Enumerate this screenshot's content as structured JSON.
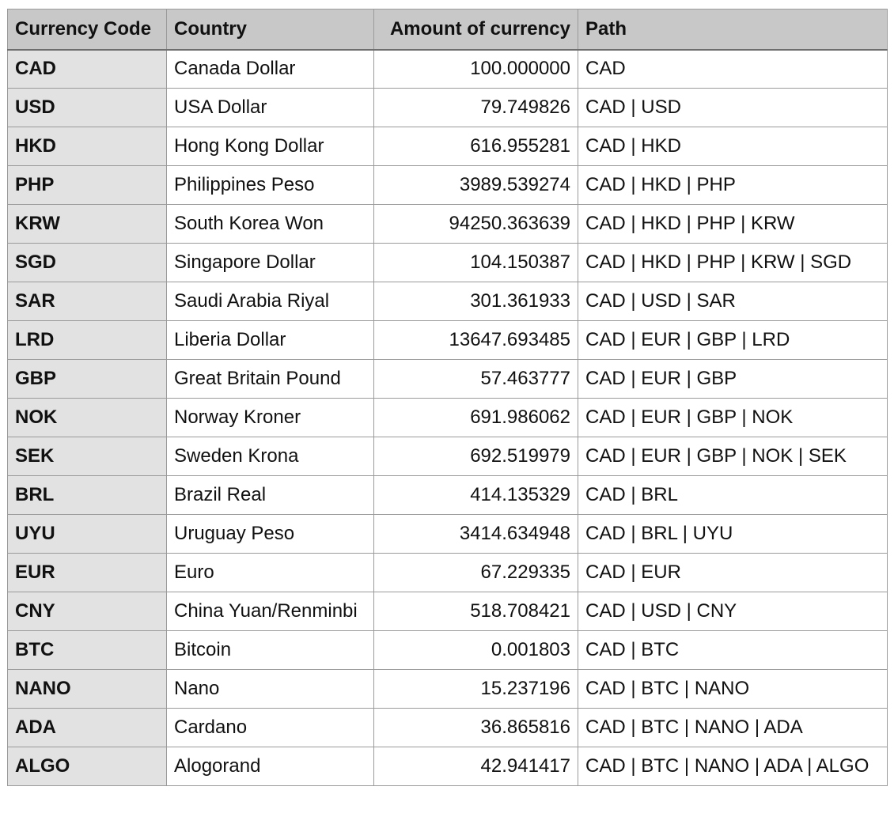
{
  "table": {
    "headers": {
      "code": "Currency Code",
      "country": "Country",
      "amount": "Amount of currency",
      "path": "Path"
    },
    "rows": [
      {
        "code": "CAD",
        "country": "Canada Dollar",
        "amount": "100.000000",
        "path": "CAD"
      },
      {
        "code": "USD",
        "country": "USA Dollar",
        "amount": "79.749826",
        "path": "CAD | USD"
      },
      {
        "code": "HKD",
        "country": "Hong Kong Dollar",
        "amount": "616.955281",
        "path": "CAD | HKD"
      },
      {
        "code": "PHP",
        "country": "Philippines Peso",
        "amount": "3989.539274",
        "path": "CAD | HKD | PHP"
      },
      {
        "code": "KRW",
        "country": "South Korea Won",
        "amount": "94250.363639",
        "path": "CAD | HKD | PHP | KRW"
      },
      {
        "code": "SGD",
        "country": "Singapore Dollar",
        "amount": "104.150387",
        "path": "CAD | HKD | PHP | KRW | SGD"
      },
      {
        "code": "SAR",
        "country": "Saudi Arabia Riyal",
        "amount": "301.361933",
        "path": "CAD | USD | SAR"
      },
      {
        "code": "LRD",
        "country": "Liberia Dollar",
        "amount": "13647.693485",
        "path": "CAD | EUR | GBP | LRD"
      },
      {
        "code": "GBP",
        "country": "Great Britain Pound",
        "amount": "57.463777",
        "path": "CAD | EUR | GBP"
      },
      {
        "code": "NOK",
        "country": "Norway Kroner",
        "amount": "691.986062",
        "path": "CAD | EUR | GBP | NOK"
      },
      {
        "code": "SEK",
        "country": "Sweden Krona",
        "amount": "692.519979",
        "path": "CAD | EUR | GBP | NOK | SEK"
      },
      {
        "code": "BRL",
        "country": "Brazil Real",
        "amount": "414.135329",
        "path": "CAD | BRL"
      },
      {
        "code": "UYU",
        "country": "Uruguay Peso",
        "amount": "3414.634948",
        "path": "CAD | BRL | UYU"
      },
      {
        "code": "EUR",
        "country": "Euro",
        "amount": "67.229335",
        "path": "CAD | EUR"
      },
      {
        "code": "CNY",
        "country": "China Yuan/Renminbi",
        "amount": "518.708421",
        "path": "CAD | USD | CNY"
      },
      {
        "code": "BTC",
        "country": "Bitcoin",
        "amount": "0.001803",
        "path": "CAD | BTC"
      },
      {
        "code": "NANO",
        "country": "Nano",
        "amount": "15.237196",
        "path": "CAD | BTC | NANO"
      },
      {
        "code": "ADA",
        "country": "Cardano",
        "amount": "36.865816",
        "path": "CAD | BTC | NANO | ADA"
      },
      {
        "code": "ALGO",
        "country": "Alogorand",
        "amount": "42.941417",
        "path": "CAD | BTC | NANO | ADA | ALGO"
      }
    ]
  },
  "colors": {
    "header_background": "#c8c8c8",
    "code_column_background": "#e2e2e2",
    "grid_line": "#9a9a9a"
  }
}
